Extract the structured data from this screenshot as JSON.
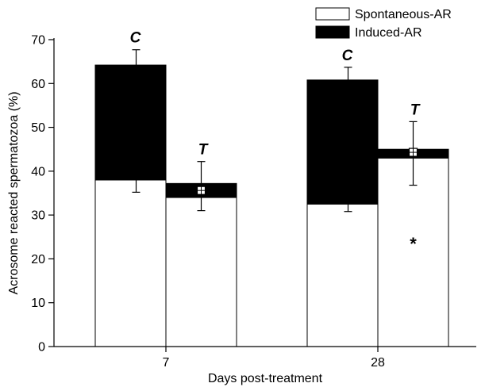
{
  "chart_data": {
    "type": "bar",
    "stacked": true,
    "xlabel": "Days post-treatment",
    "ylabel": "Acrosome reacted spermatozoa (%)",
    "ylim": [
      0,
      70
    ],
    "yticks": [
      0,
      10,
      20,
      30,
      40,
      50,
      60,
      70
    ],
    "categories": [
      "7",
      "28"
    ],
    "groups": [
      "C",
      "T"
    ],
    "legend_position": "top-right",
    "series": [
      {
        "name": "Spontaneous-AR",
        "color": "#ffffff",
        "values": [
          [
            38,
            34
          ],
          [
            32.5,
            43
          ]
        ],
        "error_low": [
          [
            35.2,
            null
          ],
          [
            30.8,
            36.8
          ]
        ]
      },
      {
        "name": "Induced-AR",
        "color": "#000000",
        "values": [
          [
            26.2,
            3.2
          ],
          [
            28.3,
            2
          ]
        ],
        "error_high": [
          [
            67.7,
            42.2
          ],
          [
            63.7,
            51.3
          ]
        ]
      }
    ],
    "t_markers": [
      {
        "category": "7",
        "value": 35.6,
        "error_low": 31,
        "error_high": 42.2
      },
      {
        "category": "28",
        "value": 44.3,
        "error_low": 36.8,
        "error_high": 51.3
      }
    ],
    "annotations": [
      {
        "text": "*",
        "category": "28",
        "group": "T",
        "y": 23.5
      }
    ]
  }
}
